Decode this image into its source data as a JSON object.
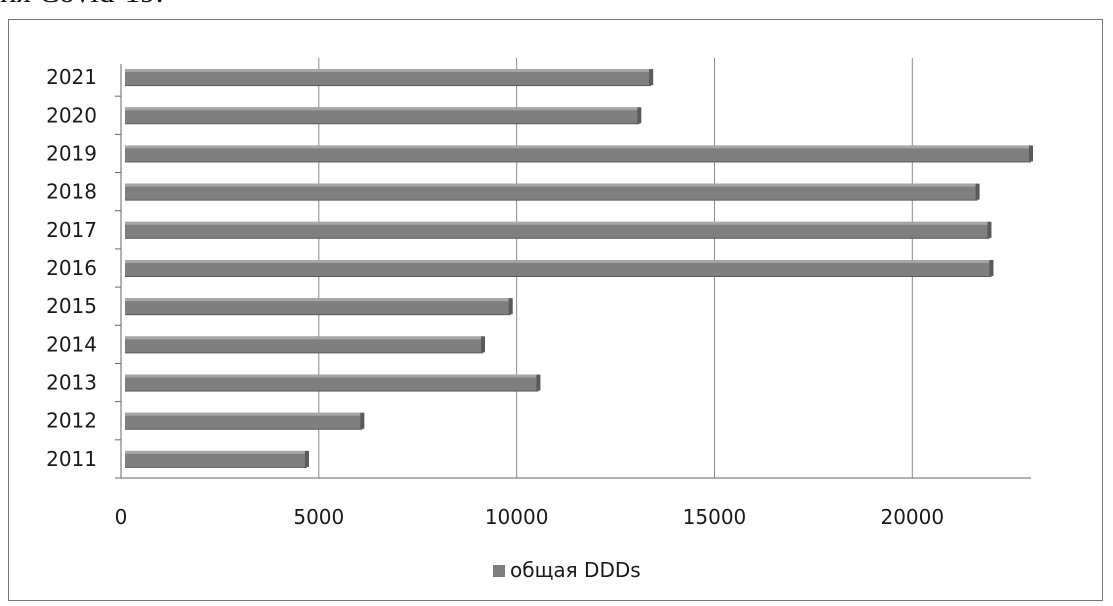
{
  "top_text": "ия Covid-19.",
  "colors": {
    "bar": "#7f7f7f",
    "bar_top": "#a6a6a6",
    "bar_shadow": "#5a5a5a",
    "grid": "#8c8c8c",
    "axis": "#666666"
  },
  "chart_data": {
    "type": "bar",
    "orientation": "horizontal",
    "categories": [
      "2011",
      "2012",
      "2013",
      "2014",
      "2015",
      "2016",
      "2017",
      "2018",
      "2019",
      "2020",
      "2021"
    ],
    "series": [
      {
        "name": "общая DDDs",
        "values": [
          4700,
          6100,
          10550,
          9150,
          9850,
          22000,
          21950,
          21650,
          23000,
          13100,
          13400
        ]
      }
    ],
    "xticks": [
      "0",
      "5000",
      "10000",
      "15000",
      "20000"
    ],
    "xlim": [
      0,
      23000
    ],
    "grid": true,
    "legend": "bottom"
  }
}
